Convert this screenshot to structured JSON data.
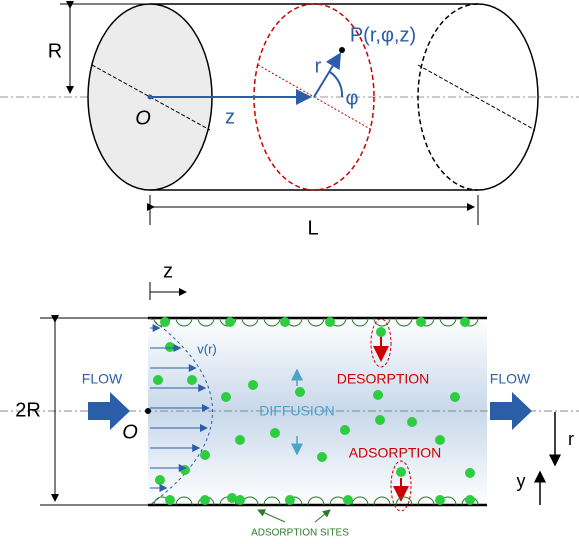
{
  "cylinder": {
    "radius_label": "R",
    "origin_label": "O",
    "axis_label": "z",
    "point_label": "P(r,φ,z)",
    "r_label": "r",
    "angle_label": "φ",
    "length_label": "L"
  },
  "channel": {
    "axis_label": "z",
    "velocity_label": "v(r)",
    "flow_in_label": "FLOW",
    "flow_out_label": "FLOW",
    "height_label": "2R",
    "origin_label": "O",
    "diffusion_label": "DIFFUSION",
    "desorption_label": "DESORPTION",
    "adsorption_label": "ADSORPTION",
    "r_label": "r",
    "y_label": "y",
    "sites_label": "ADSORPTION SITES"
  }
}
